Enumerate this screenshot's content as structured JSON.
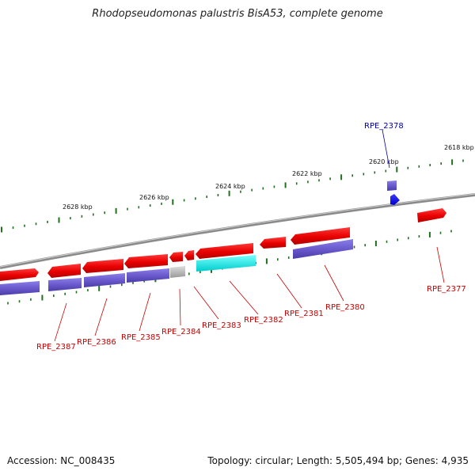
{
  "title": "Rhodopseudomonas palustris BisA53, complete genome",
  "footer": {
    "accession": "Accession: NC_008435",
    "stats": "Topology: circular; Length: 5,505,494 bp; Genes: 4,935"
  },
  "colors": {
    "backbone": "#808080",
    "forward_gene": "#ee1111",
    "reverse_gene": "#6a5acd",
    "highlight_gene": "#1111ee",
    "cyan_feature": "#00dddd",
    "gray_feature": "#b0b0b0",
    "tick": "#207020",
    "label": "#cc0000",
    "highlight_label": "#0000aa"
  },
  "ticks": [
    "2618 kbp",
    "2620 kbp",
    "2622 kbp",
    "2624 kbp",
    "2626 kbp",
    "2628 kbp"
  ],
  "genes": [
    "RPE_2378",
    "RPE_2377",
    "RPE_2380",
    "RPE_2381",
    "RPE_2382",
    "RPE_2383",
    "RPE_2384",
    "RPE_2385",
    "RPE_2386",
    "RPE_2387"
  ]
}
